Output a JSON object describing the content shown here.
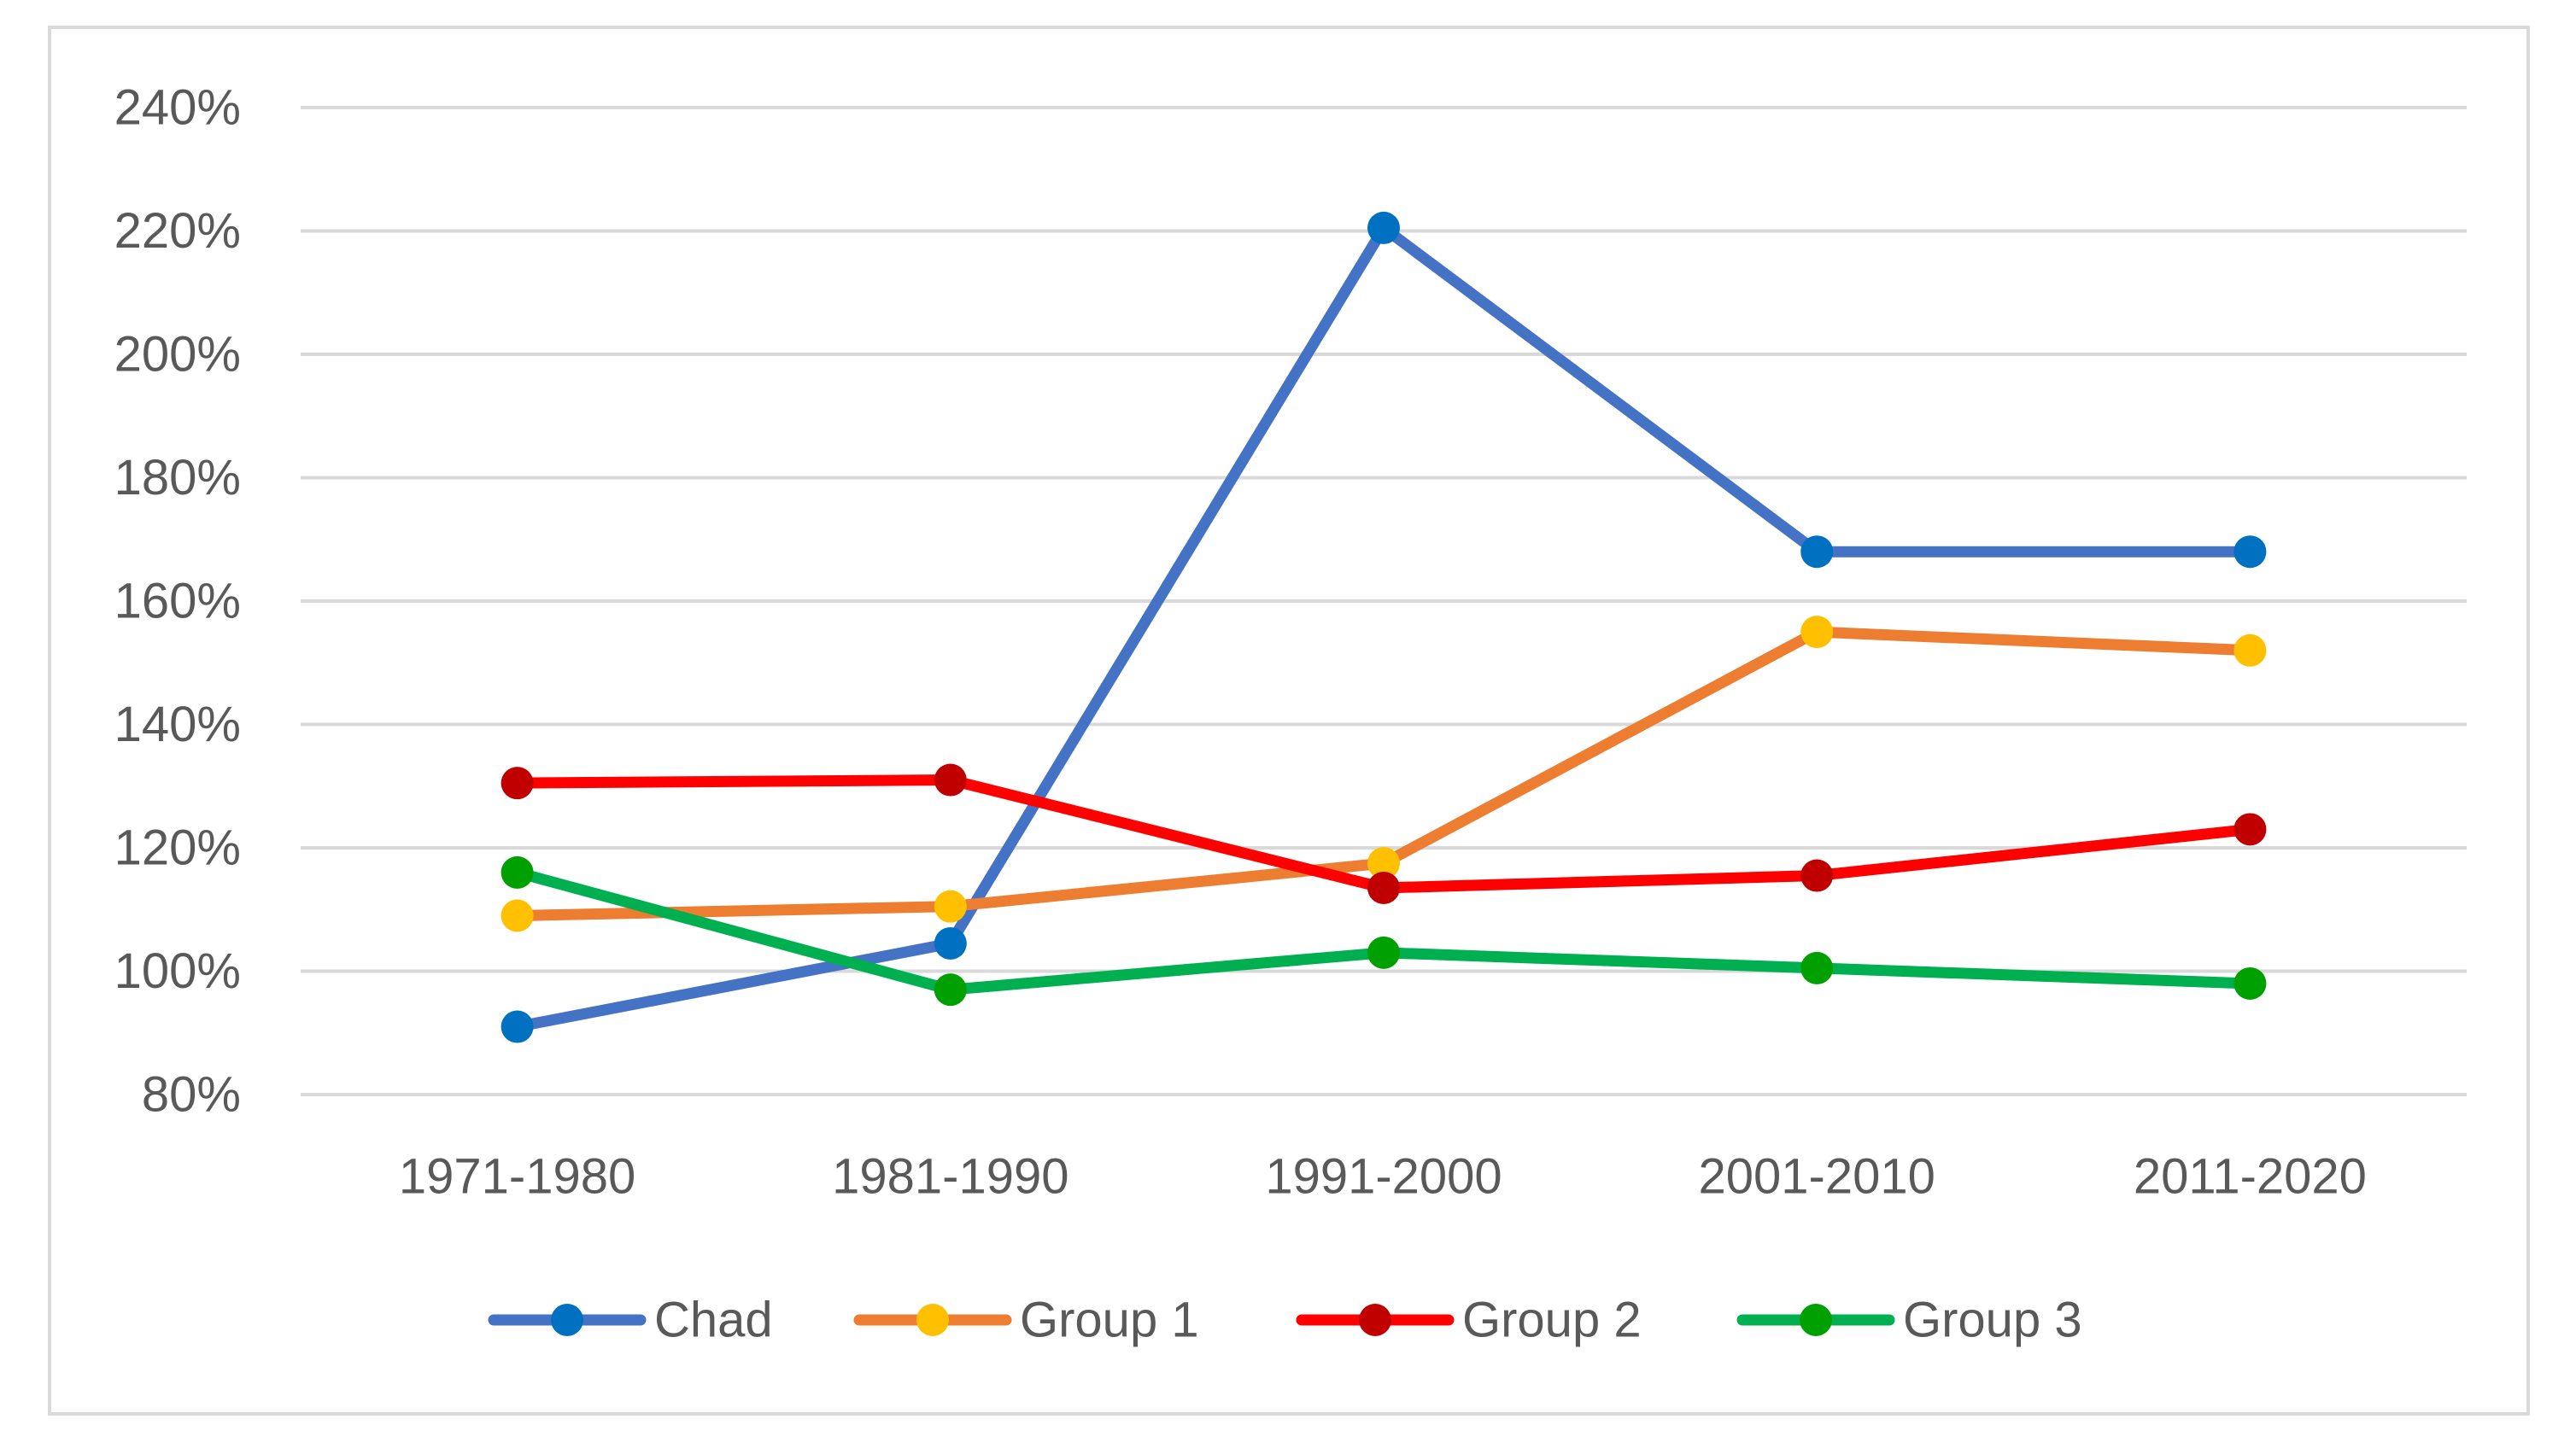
{
  "chart_data": {
    "type": "line",
    "title": "",
    "xlabel": "",
    "ylabel": "",
    "categories": [
      "1971-1980",
      "1981-1990",
      "1991-2000",
      "2001-2010",
      "2011-2020"
    ],
    "ylim": [
      0.8,
      2.4
    ],
    "yticks": [
      0.8,
      1.0,
      1.2,
      1.4,
      1.6,
      1.8,
      2.0,
      2.2,
      2.4
    ],
    "ytick_labels": [
      "80%",
      "100%",
      "120%",
      "140%",
      "160%",
      "180%",
      "200%",
      "220%",
      "240%"
    ],
    "y_format": "percent",
    "grid": "horizontal",
    "legend_position": "bottom",
    "series": [
      {
        "name": "Chad",
        "line_color": "#4472c4",
        "marker_color": "#0070c0",
        "values": [
          0.91,
          1.045,
          2.205,
          1.68,
          1.68
        ]
      },
      {
        "name": "Group 1",
        "line_color": "#ed7d31",
        "marker_color": "#ffc000",
        "values": [
          1.09,
          1.105,
          1.175,
          1.55,
          1.52
        ]
      },
      {
        "name": "Group 2",
        "line_color": "#ff0000",
        "marker_color": "#c00000",
        "values": [
          1.305,
          1.31,
          1.135,
          1.155,
          1.23
        ]
      },
      {
        "name": "Group 3",
        "line_color": "#00b050",
        "marker_color": "#00a000",
        "values": [
          1.16,
          0.97,
          1.03,
          1.005,
          0.98
        ]
      }
    ]
  }
}
